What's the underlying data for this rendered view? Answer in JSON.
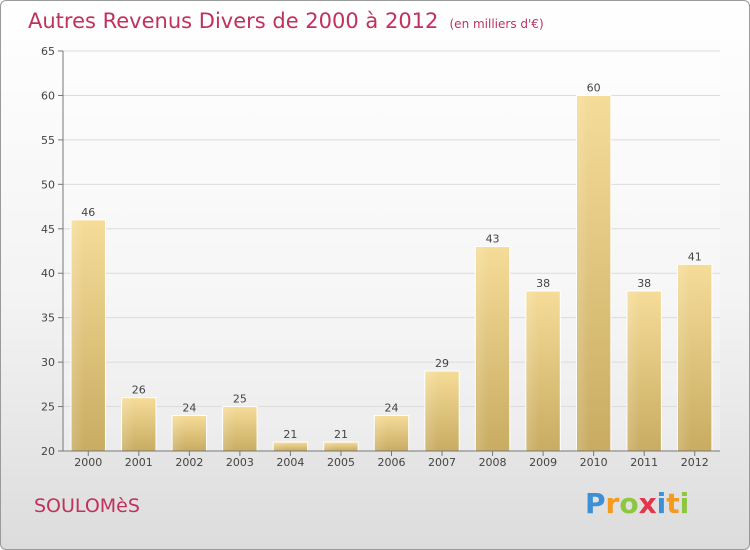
{
  "chart_data": {
    "type": "bar",
    "title": "Autres Revenus Divers de 2000 à 2012",
    "subtitle": "(en milliers d'€)",
    "categories": [
      "2000",
      "2001",
      "2002",
      "2003",
      "2004",
      "2005",
      "2006",
      "2007",
      "2008",
      "2009",
      "2010",
      "2011",
      "2012"
    ],
    "values": [
      46,
      26,
      24,
      25,
      21,
      21,
      24,
      29,
      43,
      38,
      60,
      38,
      41
    ],
    "ylim": [
      20,
      65
    ],
    "yticks": [
      20,
      25,
      30,
      35,
      40,
      45,
      50,
      55,
      60,
      65
    ],
    "grid": true,
    "bar_color": "#e8cc88"
  },
  "footer": {
    "commune": "SOULOMèS",
    "logo_letters": [
      "P",
      "r",
      "o",
      "x",
      "i",
      "t",
      "i"
    ],
    "logo_colors": [
      "#3d8fd6",
      "#f39a1f",
      "#8dc63f",
      "#e2374b",
      "#3d8fd6",
      "#f39a1f",
      "#8dc63f"
    ]
  }
}
